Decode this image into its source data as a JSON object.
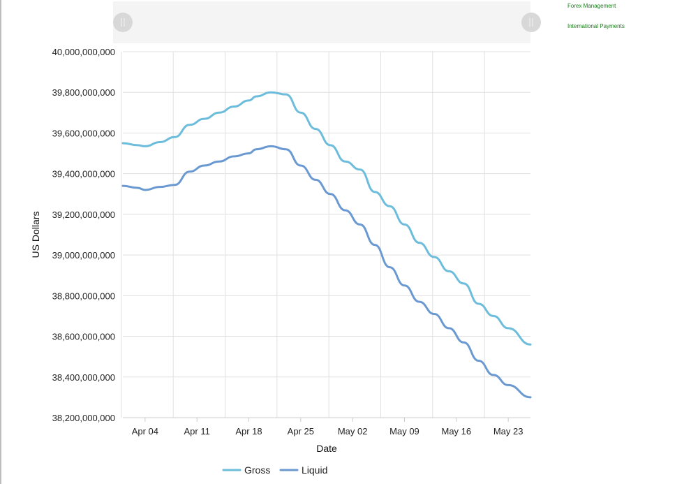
{
  "nav": {
    "links": [
      {
        "label": "Forex Management"
      },
      {
        "label": "International Payments"
      }
    ]
  },
  "chart_data": {
    "type": "line",
    "xlabel": "Date",
    "ylabel": "US Dollars",
    "x_ticks": [
      "Apr 04",
      "Apr 11",
      "Apr 18",
      "Apr 25",
      "May 02",
      "May 09",
      "May 16",
      "May 23"
    ],
    "y_ticks": [
      "38,200,000,000",
      "38,400,000,000",
      "38,600,000,000",
      "38,800,000,000",
      "39,000,000,000",
      "39,200,000,000",
      "39,400,000,000",
      "39,600,000,000",
      "39,800,000,000",
      "40,000,000,000"
    ],
    "ylim": [
      38200000000,
      40000000000
    ],
    "xlim": [
      "2024-04-01",
      "2024-05-26"
    ],
    "grid": true,
    "legend_position": "bottom-center",
    "navigator": true,
    "colors": {
      "Gross": "#6cbcdb",
      "Liquid": "#6a99d2"
    },
    "x": [
      "2024-04-01",
      "2024-04-03",
      "2024-04-04",
      "2024-04-06",
      "2024-04-08",
      "2024-04-10",
      "2024-04-12",
      "2024-04-14",
      "2024-04-16",
      "2024-04-18",
      "2024-04-19",
      "2024-04-21",
      "2024-04-23",
      "2024-04-25",
      "2024-04-27",
      "2024-04-29",
      "2024-05-01",
      "2024-05-03",
      "2024-05-05",
      "2024-05-07",
      "2024-05-09",
      "2024-05-11",
      "2024-05-13",
      "2024-05-15",
      "2024-05-17",
      "2024-05-19",
      "2024-05-21",
      "2024-05-23",
      "2024-05-26"
    ],
    "series": [
      {
        "name": "Gross",
        "values": [
          39550000000,
          39540000000,
          39535000000,
          39555000000,
          39580000000,
          39640000000,
          39670000000,
          39700000000,
          39730000000,
          39760000000,
          39780000000,
          39800000000,
          39790000000,
          39700000000,
          39620000000,
          39540000000,
          39460000000,
          39420000000,
          39310000000,
          39240000000,
          39150000000,
          39060000000,
          38990000000,
          38920000000,
          38860000000,
          38760000000,
          38700000000,
          38640000000,
          38560000000
        ]
      },
      {
        "name": "Liquid",
        "values": [
          39340000000,
          39330000000,
          39320000000,
          39335000000,
          39345000000,
          39410000000,
          39440000000,
          39460000000,
          39485000000,
          39500000000,
          39520000000,
          39535000000,
          39520000000,
          39440000000,
          39370000000,
          39300000000,
          39220000000,
          39150000000,
          39050000000,
          38940000000,
          38850000000,
          38770000000,
          38710000000,
          38640000000,
          38570000000,
          38480000000,
          38410000000,
          38360000000,
          38300000000
        ]
      }
    ]
  }
}
